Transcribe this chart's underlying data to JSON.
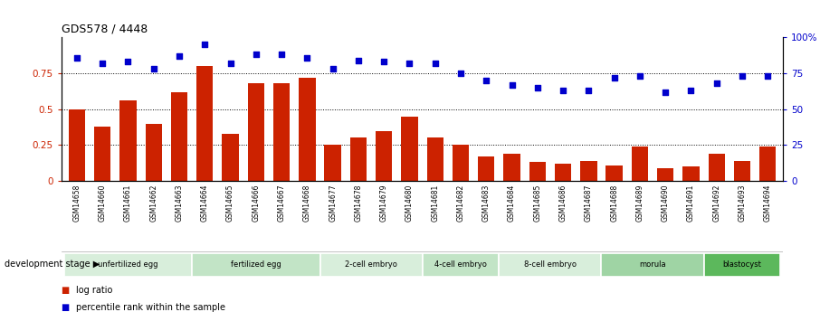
{
  "title": "GDS578 / 4448",
  "samples": [
    "GSM14658",
    "GSM14660",
    "GSM14661",
    "GSM14662",
    "GSM14663",
    "GSM14664",
    "GSM14665",
    "GSM14666",
    "GSM14667",
    "GSM14668",
    "GSM14677",
    "GSM14678",
    "GSM14679",
    "GSM14680",
    "GSM14681",
    "GSM14682",
    "GSM14683",
    "GSM14684",
    "GSM14685",
    "GSM14686",
    "GSM14687",
    "GSM14688",
    "GSM14689",
    "GSM14690",
    "GSM14691",
    "GSM14692",
    "GSM14693",
    "GSM14694"
  ],
  "log_ratio": [
    0.5,
    0.38,
    0.56,
    0.4,
    0.62,
    0.8,
    0.33,
    0.68,
    0.68,
    0.72,
    0.25,
    0.3,
    0.35,
    0.45,
    0.3,
    0.25,
    0.17,
    0.19,
    0.13,
    0.12,
    0.14,
    0.11,
    0.24,
    0.09,
    0.1,
    0.19,
    0.14,
    0.24
  ],
  "percentile_rank": [
    86,
    82,
    83,
    78,
    87,
    95,
    82,
    88,
    88,
    86,
    78,
    84,
    83,
    82,
    82,
    75,
    70,
    67,
    65,
    63,
    63,
    72,
    73,
    62,
    63,
    68,
    73,
    73
  ],
  "stages": [
    {
      "label": "unfertilized egg",
      "start": 0,
      "end": 5,
      "color": "#d8eedb"
    },
    {
      "label": "fertilized egg",
      "start": 5,
      "end": 10,
      "color": "#c2e4c6"
    },
    {
      "label": "2-cell embryo",
      "start": 10,
      "end": 14,
      "color": "#d8eedb"
    },
    {
      "label": "4-cell embryo",
      "start": 14,
      "end": 17,
      "color": "#c2e4c6"
    },
    {
      "label": "8-cell embryo",
      "start": 17,
      "end": 21,
      "color": "#d8eedb"
    },
    {
      "label": "morula",
      "start": 21,
      "end": 25,
      "color": "#9fd4a4"
    },
    {
      "label": "blastocyst",
      "start": 25,
      "end": 28,
      "color": "#5cb85c"
    }
  ],
  "bar_color": "#cc2200",
  "dot_color": "#0000cc",
  "yticks_left": [
    0,
    0.25,
    0.5,
    0.75
  ],
  "yticks_right": [
    0,
    25,
    50,
    75,
    100
  ],
  "ylim_left": [
    0,
    1.0
  ],
  "ylim_right": [
    0,
    100
  ],
  "dev_stage_label": "development stage",
  "legend_bar": "log ratio",
  "legend_dot": "percentile rank within the sample"
}
